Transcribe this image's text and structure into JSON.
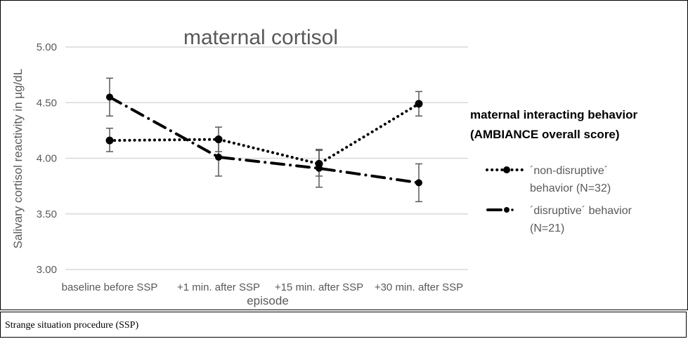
{
  "chart_data": {
    "type": "line",
    "title": "maternal cortisol",
    "xlabel": "episode",
    "ylabel": "Salivary cortisol reactivity in µg/dL",
    "ylim": [
      3.0,
      5.0
    ],
    "yticks": [
      "3.00",
      "3.50",
      "4.00",
      "4.50",
      "5.00"
    ],
    "ytick_values": [
      3.0,
      3.5,
      4.0,
      4.5,
      5.0
    ],
    "grid": true,
    "categories": [
      "baseline before SSP",
      "+1 min. after SSP",
      "+15 min. after SSP",
      "+30 min. after SSP"
    ],
    "legend": {
      "title_line1": "maternal interacting behavior",
      "title_line2": "(AMBIANCE overall score)",
      "placement": "right"
    },
    "series": [
      {
        "name_line1": "´non-disruptive´",
        "name_line2": "behavior (N=32)",
        "style": "dotted",
        "values": [
          4.16,
          4.17,
          3.95,
          4.49
        ],
        "err_low": [
          4.06,
          4.06,
          3.84,
          4.38
        ],
        "err_high": [
          4.27,
          4.28,
          4.08,
          4.6
        ]
      },
      {
        "name_line1": "´disruptive´ behavior",
        "name_line2": "(N=21)",
        "style": "dash-dot",
        "values": [
          4.55,
          4.01,
          3.91,
          3.78
        ],
        "err_low": [
          4.38,
          3.84,
          3.74,
          3.61
        ],
        "err_high": [
          4.72,
          4.18,
          4.07,
          3.95
        ]
      }
    ]
  },
  "caption": "Strange situation procedure (SSP)",
  "colors": {
    "grid": "#d9d9d9",
    "text": "#595959",
    "series": "#000000",
    "errorbar": "#595959"
  }
}
